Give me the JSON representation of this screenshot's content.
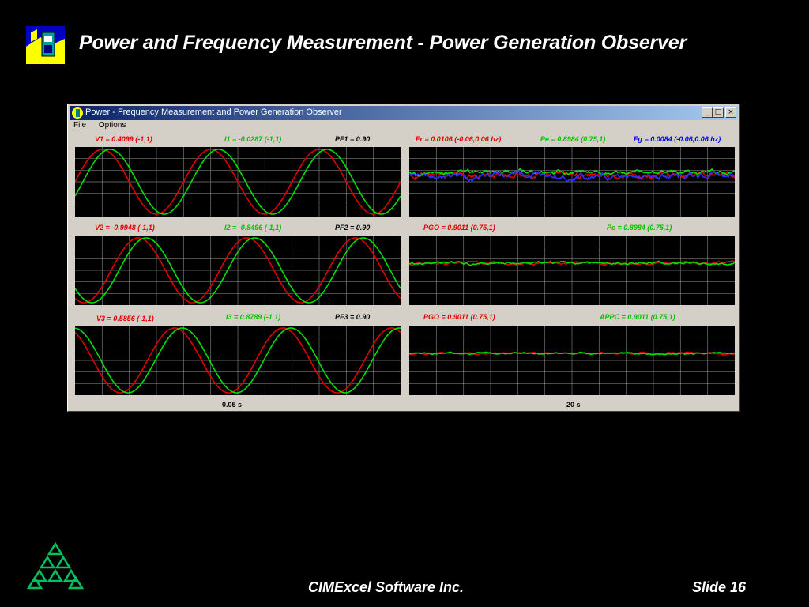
{
  "slide": {
    "title": "Power and Frequency Measurement - Power Generation Observer",
    "footer_company": "CIMExcel Software Inc.",
    "footer_slide": "Slide 16"
  },
  "window": {
    "title": "Power - Frequency Measurement and Power Generation Observer",
    "menu": [
      "File",
      "Options"
    ],
    "controls": {
      "minimize": "_",
      "maximize": "□",
      "close": "×"
    }
  },
  "panels": {
    "left": [
      {
        "v_label": "V1 = 0.4099  (-1,1)",
        "i_label": "I1 = -0.0287  (-1,1)",
        "pf_label": "PF1 = 0.90"
      },
      {
        "v_label": "V2 = -0.9948  (-1,1)",
        "i_label": "I2 = -0.8496  (-1,1)",
        "pf_label": "PF2 = 0.90"
      },
      {
        "v_label": "V3 = 0.5856  (-1,1)",
        "i_label": "I3 = 0.8789  (-1,1)",
        "pf_label": "PF3 = 0.90"
      }
    ],
    "right": [
      {
        "labels": [
          "Fr = 0.0106 (-0.06,0.06 hz)",
          "Pe = 0.8984 (0.75,1)",
          "Fg = 0.0084 (-0.06,0.06 hz)"
        ]
      },
      {
        "labels": [
          "PGO = 0.9011 (0.75,1)",
          "Pe = 0.8984 (0.75,1)"
        ]
      },
      {
        "labels": [
          "PGO = 0.9011 (0.75,1)",
          "APPC = 0.9011 (0.75,1)"
        ]
      }
    ],
    "left_time": "0.05 s",
    "right_time": "20 s"
  },
  "chart_data": [
    {
      "type": "line",
      "title": "",
      "ylim": [
        -1,
        1
      ],
      "grid": true,
      "series": [
        {
          "name": "V1",
          "color": "#e00000",
          "cycles": 3,
          "amplitude": 1.0,
          "phase_deg": 0
        },
        {
          "name": "I1",
          "color": "#00e000",
          "cycles": 3,
          "amplitude": 1.0,
          "phase_deg": 26
        }
      ]
    },
    {
      "type": "line",
      "title": "",
      "ylim": [
        -1,
        1
      ],
      "grid": true,
      "series": [
        {
          "name": "V2",
          "color": "#e00000",
          "cycles": 3,
          "amplitude": 1.0,
          "phase_deg": 120
        },
        {
          "name": "I2",
          "color": "#00e000",
          "cycles": 3,
          "amplitude": 1.0,
          "phase_deg": 146
        }
      ]
    },
    {
      "type": "line",
      "title": "",
      "ylim": [
        -1,
        1
      ],
      "grid": true,
      "series": [
        {
          "name": "V3",
          "color": "#e00000",
          "cycles": 3,
          "amplitude": 1.0,
          "phase_deg": 240
        },
        {
          "name": "I3",
          "color": "#00e000",
          "cycles": 3,
          "amplitude": 1.0,
          "phase_deg": 266
        }
      ]
    },
    {
      "type": "line",
      "title": "",
      "grid": true,
      "series": [
        {
          "name": "Fr",
          "color": "#e00000",
          "level_frac": 0.41,
          "noise": 0.03
        },
        {
          "name": "Pe",
          "color": "#00e000",
          "level_frac": 0.36,
          "noise": 0.02
        },
        {
          "name": "Fg",
          "color": "#3030ff",
          "level_frac": 0.42,
          "noise": 0.03
        }
      ]
    },
    {
      "type": "line",
      "title": "",
      "grid": true,
      "series": [
        {
          "name": "PGO",
          "color": "#e00000",
          "level_frac": 0.4,
          "noise": 0.012
        },
        {
          "name": "Pe",
          "color": "#00e000",
          "level_frac": 0.4,
          "noise": 0.012
        }
      ]
    },
    {
      "type": "line",
      "title": "",
      "grid": true,
      "series": [
        {
          "name": "PGO",
          "color": "#e00000",
          "level_frac": 0.4,
          "noise": 0.008
        },
        {
          "name": "APPC",
          "color": "#00e000",
          "level_frac": 0.4,
          "noise": 0.008
        }
      ]
    }
  ]
}
